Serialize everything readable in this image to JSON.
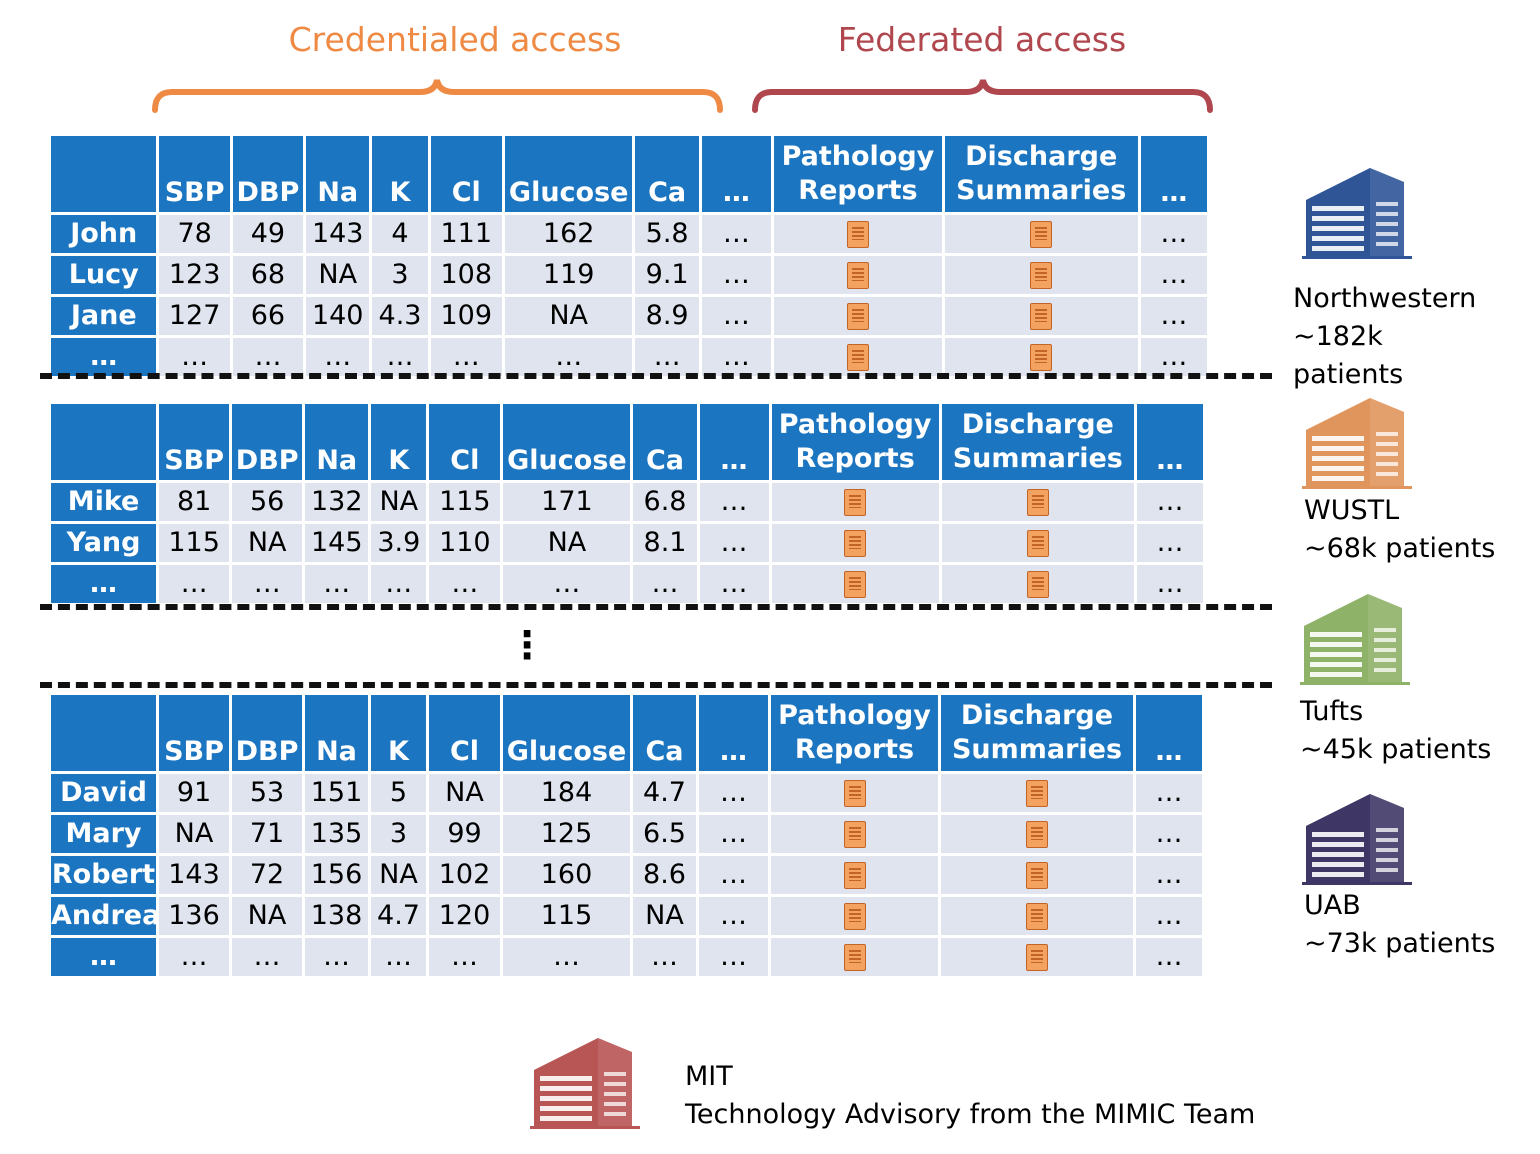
{
  "access": {
    "credentialed": {
      "label": "Credentialed access",
      "color": "#ee8a44"
    },
    "federated": {
      "label": "Federated access",
      "color": "#b0474e"
    }
  },
  "columns": {
    "vitals": [
      "SBP",
      "DBP",
      "Na",
      "K",
      "Cl",
      "Glucose",
      "Ca",
      "…"
    ],
    "notes": [
      "Pathology Reports",
      "Discharge Summaries",
      "…"
    ]
  },
  "doc_icon": "document-icon",
  "tables": [
    {
      "rows": [
        {
          "name": "John",
          "values": [
            "78",
            "49",
            "143",
            "4",
            "111",
            "162",
            "5.8",
            "…"
          ],
          "last": "…"
        },
        {
          "name": "Lucy",
          "values": [
            "123",
            "68",
            "NA",
            "3",
            "108",
            "119",
            "9.1",
            "…"
          ],
          "last": "…"
        },
        {
          "name": "Jane",
          "values": [
            "127",
            "66",
            "140",
            "4.3",
            "109",
            "NA",
            "8.9",
            "…"
          ],
          "last": "…"
        },
        {
          "name": "…",
          "values": [
            "…",
            "…",
            "…",
            "…",
            "…",
            "…",
            "…",
            "…"
          ],
          "last": "…"
        }
      ]
    },
    {
      "rows": [
        {
          "name": "Mike",
          "values": [
            "81",
            "56",
            "132",
            "NA",
            "115",
            "171",
            "6.8",
            "…"
          ],
          "last": "…"
        },
        {
          "name": "Yang",
          "values": [
            "115",
            "NA",
            "145",
            "3.9",
            "110",
            "NA",
            "8.1",
            "…"
          ],
          "last": "…"
        },
        {
          "name": "…",
          "values": [
            "…",
            "…",
            "…",
            "…",
            "…",
            "…",
            "…",
            "…"
          ],
          "last": "…"
        }
      ]
    },
    {
      "rows": [
        {
          "name": "David",
          "values": [
            "91",
            "53",
            "151",
            "5",
            "NA",
            "184",
            "4.7",
            "…"
          ],
          "last": "…"
        },
        {
          "name": "Mary",
          "values": [
            "NA",
            "71",
            "135",
            "3",
            "99",
            "125",
            "6.5",
            "…"
          ],
          "last": "…"
        },
        {
          "name": "Robert",
          "values": [
            "143",
            "72",
            "156",
            "NA",
            "102",
            "160",
            "8.6",
            "…"
          ],
          "last": "…"
        },
        {
          "name": "Andrea",
          "values": [
            "136",
            "NA",
            "138",
            "4.7",
            "120",
            "115",
            "NA",
            "…"
          ],
          "last": "…"
        },
        {
          "name": "…",
          "values": [
            "…",
            "…",
            "…",
            "…",
            "…",
            "…",
            "…",
            "…"
          ],
          "last": "…"
        }
      ]
    }
  ],
  "ellipsis": "⋮",
  "sites": [
    {
      "icon": "hospital-building-icon",
      "color": "#2f5597",
      "lines": [
        "Northwestern",
        "~182k",
        "patients"
      ]
    },
    {
      "icon": "hospital-building-icon",
      "color": "#e0955c",
      "lines": [
        "WUSTL",
        "~68k patients"
      ]
    },
    {
      "icon": "hospital-building-icon",
      "color": "#8fb269",
      "lines": [
        "Tufts",
        "~45k patients"
      ]
    },
    {
      "icon": "hospital-building-icon",
      "color": "#3e3766",
      "lines": [
        "UAB",
        "~73k patients"
      ]
    }
  ],
  "advisor": {
    "icon": "hospital-building-icon",
    "color": "#b85555",
    "lines": [
      "MIT",
      "Technology Advisory from the MIMIC Team"
    ]
  }
}
